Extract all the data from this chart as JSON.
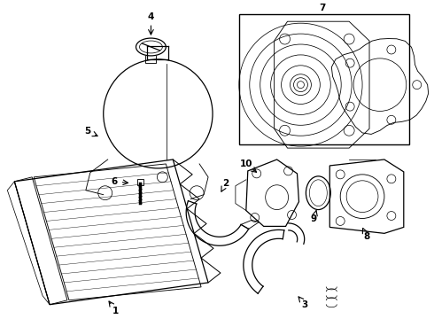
{
  "background_color": "#ffffff",
  "line_color": "#000000",
  "fig_width": 4.9,
  "fig_height": 3.6,
  "dpi": 100
}
